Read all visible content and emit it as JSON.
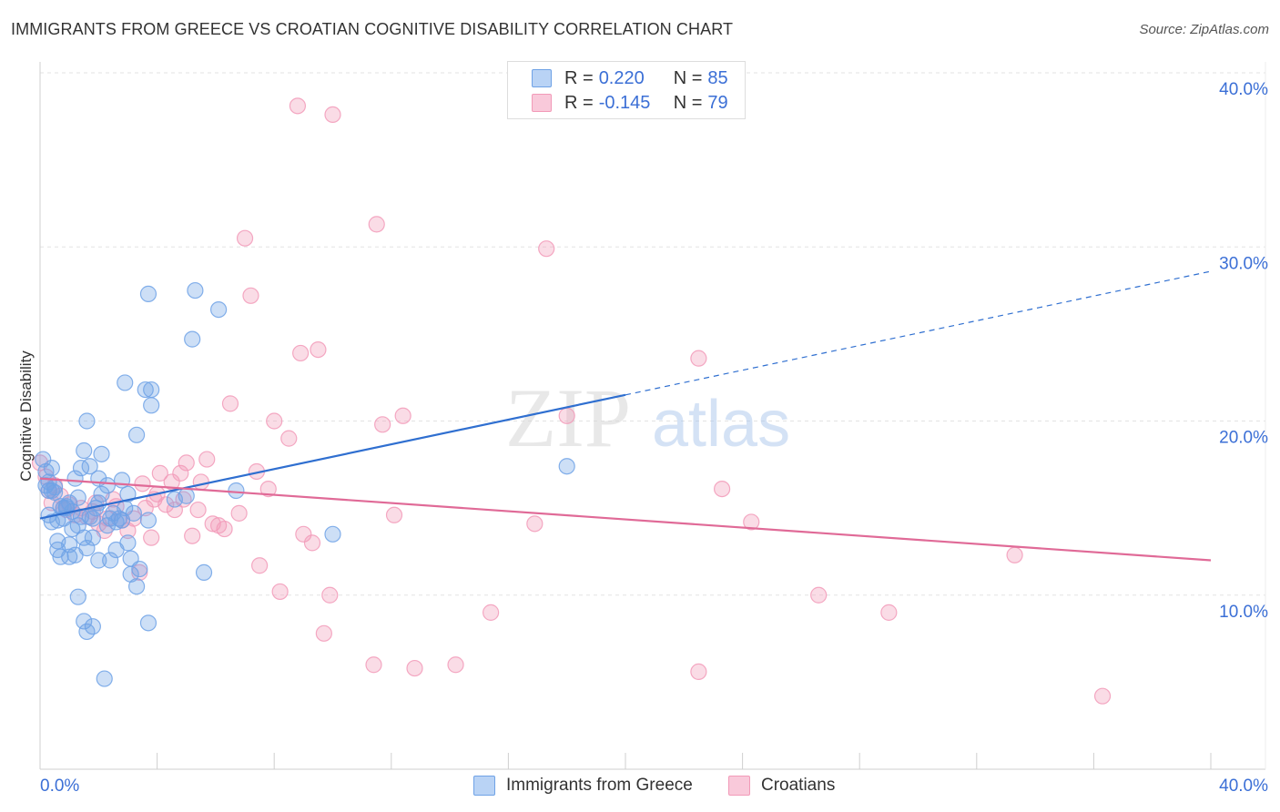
{
  "title": "IMMIGRANTS FROM GREECE VS CROATIAN COGNITIVE DISABILITY CORRELATION CHART",
  "source": "Source: ZipAtlas.com",
  "watermark": {
    "zip": "ZIP",
    "atlas": "atlas"
  },
  "legend": {
    "rows": [
      {
        "r_label": "R =",
        "r_value": "0.220",
        "n_label": "N =",
        "n_value": "85"
      },
      {
        "r_label": "R =",
        "r_value": "-0.145",
        "n_label": "N =",
        "n_value": "79"
      }
    ]
  },
  "chart_data": {
    "type": "scatter",
    "title": "IMMIGRANTS FROM GREECE VS CROATIAN COGNITIVE DISABILITY CORRELATION CHART",
    "xlabel": "",
    "ylabel": "Cognitive Disability",
    "xlim": [
      0,
      40
    ],
    "ylim": [
      0,
      40
    ],
    "x_tick_labels": [
      "0.0%",
      "40.0%"
    ],
    "y_tick_labels": [
      "10.0%",
      "20.0%",
      "30.0%",
      "40.0%"
    ],
    "y_ticks": [
      10,
      20,
      30,
      40
    ],
    "grid": true,
    "legend_position": "top-center",
    "colors": {
      "greece": "#6fa2e6",
      "croatians": "#f29ab8",
      "greece_line": "#2f6fd0",
      "croatians_line": "#e06a97",
      "tick_text": "#3b6fd6"
    },
    "series": [
      {
        "name": "Immigrants from Greece",
        "r": 0.22,
        "n": 85,
        "trend": {
          "x": [
            0,
            20
          ],
          "y": [
            14.4,
            21.5
          ],
          "dashed_to": [
            40,
            28.6
          ]
        },
        "points": [
          [
            0.1,
            17.8
          ],
          [
            0.2,
            16.3
          ],
          [
            0.2,
            17.1
          ],
          [
            0.3,
            16.0
          ],
          [
            0.3,
            14.6
          ],
          [
            0.4,
            14.2
          ],
          [
            0.4,
            16.0
          ],
          [
            0.5,
            15.9
          ],
          [
            0.6,
            13.1
          ],
          [
            0.6,
            12.6
          ],
          [
            0.7,
            15.1
          ],
          [
            0.7,
            12.2
          ],
          [
            0.8,
            14.4
          ],
          [
            0.8,
            15.0
          ],
          [
            0.9,
            15.1
          ],
          [
            1.0,
            12.9
          ],
          [
            1.0,
            12.2
          ],
          [
            1.1,
            13.8
          ],
          [
            1.1,
            14.8
          ],
          [
            1.2,
            16.7
          ],
          [
            1.2,
            12.3
          ],
          [
            1.3,
            15.6
          ],
          [
            1.3,
            14.0
          ],
          [
            1.4,
            17.3
          ],
          [
            1.5,
            13.3
          ],
          [
            1.5,
            18.3
          ],
          [
            1.6,
            20.0
          ],
          [
            1.6,
            12.7
          ],
          [
            1.7,
            17.4
          ],
          [
            1.8,
            14.4
          ],
          [
            1.3,
            9.9
          ],
          [
            1.5,
            8.5
          ],
          [
            1.6,
            7.9
          ],
          [
            1.8,
            8.2
          ],
          [
            1.8,
            13.3
          ],
          [
            1.9,
            15.0
          ],
          [
            2.0,
            12.0
          ],
          [
            2.0,
            16.7
          ],
          [
            2.1,
            18.1
          ],
          [
            2.1,
            15.8
          ],
          [
            2.3,
            16.3
          ],
          [
            2.3,
            14.0
          ],
          [
            2.4,
            14.4
          ],
          [
            2.4,
            12.0
          ],
          [
            2.5,
            14.7
          ],
          [
            2.6,
            12.6
          ],
          [
            2.7,
            14.4
          ],
          [
            2.8,
            14.3
          ],
          [
            2.8,
            16.6
          ],
          [
            2.9,
            22.2
          ],
          [
            2.9,
            15.0
          ],
          [
            3.0,
            13.0
          ],
          [
            3.0,
            15.8
          ],
          [
            3.1,
            12.1
          ],
          [
            3.2,
            14.7
          ],
          [
            3.3,
            19.2
          ],
          [
            3.3,
            10.5
          ],
          [
            3.4,
            11.5
          ],
          [
            3.6,
            21.8
          ],
          [
            3.7,
            14.3
          ],
          [
            3.7,
            8.4
          ],
          [
            3.8,
            20.9
          ],
          [
            3.8,
            21.8
          ],
          [
            2.2,
            5.2
          ],
          [
            3.7,
            27.3
          ],
          [
            5.3,
            27.5
          ],
          [
            5.2,
            24.7
          ],
          [
            6.1,
            26.4
          ],
          [
            6.7,
            16.0
          ],
          [
            5.0,
            15.7
          ],
          [
            5.6,
            11.3
          ],
          [
            4.6,
            15.5
          ],
          [
            10.0,
            13.5
          ],
          [
            18.0,
            17.4
          ],
          [
            0.5,
            16.2
          ],
          [
            1.0,
            15.3
          ],
          [
            0.9,
            15.0
          ],
          [
            0.4,
            17.3
          ],
          [
            0.3,
            16.5
          ],
          [
            2.0,
            15.3
          ],
          [
            1.4,
            14.5
          ],
          [
            0.6,
            14.3
          ],
          [
            1.7,
            14.5
          ],
          [
            3.1,
            11.2
          ],
          [
            2.6,
            14.2
          ]
        ]
      },
      {
        "name": "Croatians",
        "r": -0.145,
        "n": 79,
        "trend": {
          "x": [
            0,
            40
          ],
          "y": [
            16.7,
            12.0
          ]
        },
        "points": [
          [
            0.0,
            17.6
          ],
          [
            0.2,
            16.8
          ],
          [
            0.3,
            16.0
          ],
          [
            0.4,
            15.3
          ],
          [
            0.5,
            16.3
          ],
          [
            0.7,
            15.7
          ],
          [
            0.8,
            15.0
          ],
          [
            0.9,
            14.9
          ],
          [
            1.0,
            15.2
          ],
          [
            1.2,
            14.6
          ],
          [
            1.4,
            15.0
          ],
          [
            1.6,
            14.5
          ],
          [
            1.8,
            14.8
          ],
          [
            1.9,
            15.3
          ],
          [
            2.0,
            14.1
          ],
          [
            2.2,
            13.7
          ],
          [
            2.3,
            14.4
          ],
          [
            2.5,
            15.5
          ],
          [
            2.6,
            15.1
          ],
          [
            2.8,
            14.3
          ],
          [
            3.0,
            13.7
          ],
          [
            3.2,
            14.4
          ],
          [
            3.4,
            11.3
          ],
          [
            3.5,
            16.4
          ],
          [
            3.6,
            15.0
          ],
          [
            3.8,
            13.3
          ],
          [
            3.9,
            15.5
          ],
          [
            4.0,
            15.8
          ],
          [
            4.1,
            17.0
          ],
          [
            4.3,
            15.2
          ],
          [
            4.5,
            16.5
          ],
          [
            4.6,
            14.9
          ],
          [
            4.8,
            17.0
          ],
          [
            4.9,
            15.5
          ],
          [
            5.0,
            17.6
          ],
          [
            5.2,
            13.4
          ],
          [
            5.4,
            14.9
          ],
          [
            5.5,
            16.5
          ],
          [
            5.7,
            17.8
          ],
          [
            5.9,
            14.1
          ],
          [
            6.1,
            14.0
          ],
          [
            6.3,
            13.8
          ],
          [
            6.5,
            21.0
          ],
          [
            6.8,
            14.7
          ],
          [
            7.0,
            30.5
          ],
          [
            7.2,
            27.2
          ],
          [
            7.4,
            17.1
          ],
          [
            7.5,
            11.7
          ],
          [
            7.8,
            16.1
          ],
          [
            8.0,
            20.0
          ],
          [
            8.2,
            10.2
          ],
          [
            8.5,
            19.0
          ],
          [
            8.9,
            23.9
          ],
          [
            9.0,
            13.5
          ],
          [
            9.3,
            13.0
          ],
          [
            9.5,
            24.1
          ],
          [
            9.7,
            7.8
          ],
          [
            9.9,
            10.0
          ],
          [
            10.0,
            37.6
          ],
          [
            8.8,
            38.1
          ],
          [
            11.5,
            31.3
          ],
          [
            11.7,
            19.8
          ],
          [
            12.1,
            14.6
          ],
          [
            12.4,
            20.3
          ],
          [
            12.8,
            5.8
          ],
          [
            14.2,
            6.0
          ],
          [
            15.4,
            9.0
          ],
          [
            16.9,
            14.1
          ],
          [
            17.3,
            29.9
          ],
          [
            18.0,
            20.3
          ],
          [
            22.5,
            23.6
          ],
          [
            22.5,
            5.6
          ],
          [
            23.3,
            16.1
          ],
          [
            24.3,
            14.2
          ],
          [
            26.6,
            10.0
          ],
          [
            29.0,
            9.0
          ],
          [
            33.3,
            12.3
          ],
          [
            36.3,
            4.2
          ],
          [
            11.4,
            6.0
          ]
        ]
      }
    ]
  }
}
